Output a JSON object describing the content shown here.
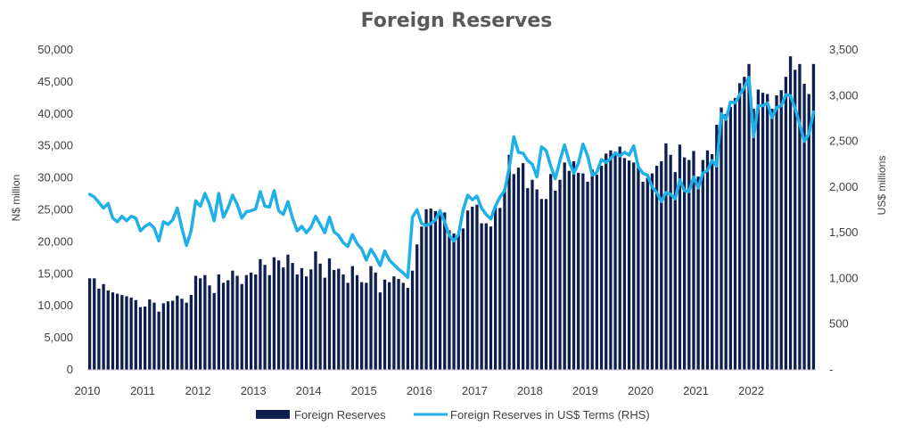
{
  "chart_data": {
    "type": "bar",
    "title": "Foreign Reserves",
    "ylabel": "N$ million",
    "y2label": "US$ millions",
    "ylim": [
      0,
      50000
    ],
    "y2lim": [
      0,
      3500
    ],
    "yticks": [
      "0",
      "5,000",
      "10,000",
      "15,000",
      "20,000",
      "25,000",
      "30,000",
      "35,000",
      "40,000",
      "45,000",
      "50,000"
    ],
    "y2ticks": [
      "-",
      "500",
      "1,000",
      "1,500",
      "2,000",
      "2,500",
      "3,000",
      "3,500"
    ],
    "xticks": [
      "2010",
      "2011",
      "2012",
      "2013",
      "2014",
      "2015",
      "2016",
      "2017",
      "2018",
      "2019",
      "2020",
      "2021",
      "2022"
    ],
    "x_start": "2010-01",
    "legend_position": "bottom",
    "series": [
      {
        "name": "Foreign Reserves",
        "type": "bar",
        "axis": "left",
        "color": "#0e1e50",
        "values": [
          14300,
          14300,
          12700,
          13400,
          12400,
          12100,
          11900,
          11700,
          11500,
          11300,
          10900,
          9800,
          9900,
          11000,
          10500,
          9100,
          10400,
          10700,
          10800,
          11600,
          11100,
          10500,
          11700,
          14700,
          14300,
          14800,
          13200,
          12000,
          14900,
          13600,
          14000,
          15500,
          14700,
          13400,
          14800,
          15200,
          14900,
          17300,
          16400,
          14800,
          17600,
          17100,
          16000,
          18000,
          16700,
          14900,
          15900,
          14600,
          15700,
          18500,
          16600,
          14400,
          17400,
          15600,
          15800,
          14900,
          13600,
          16200,
          14800,
          13700,
          13600,
          16200,
          15200,
          12100,
          14100,
          13700,
          14600,
          14200,
          13600,
          12800,
          15500,
          19600,
          22400,
          25100,
          25200,
          24800,
          24800,
          24600,
          21800,
          21300,
          21100,
          22100,
          24900,
          25500,
          25800,
          22900,
          22900,
          22400,
          25400,
          25300,
          28200,
          33600,
          30600,
          31600,
          32300,
          28400,
          29700,
          28200,
          26700,
          26700,
          30600,
          28000,
          29700,
          32400,
          31100,
          32600,
          30800,
          30700,
          29400,
          31300,
          30500,
          31900,
          33800,
          34300,
          34100,
          34900,
          33100,
          32700,
          32400,
          31900,
          29400,
          30000,
          30700,
          31900,
          32600,
          35400,
          33600,
          30900,
          35200,
          33200,
          32800,
          34200,
          30200,
          32800,
          34300,
          33700,
          38300,
          41000,
          40000,
          41100,
          42500,
          44800,
          45800,
          47800,
          40800,
          43800,
          43300,
          43100,
          40800,
          42900,
          43700,
          45800,
          49000,
          46900,
          47800,
          44700,
          43100,
          47800
        ]
      },
      {
        "name": "Foreign Reserves in US$ Terms  (RHS)",
        "type": "line",
        "axis": "right",
        "color": "#1fb0e8",
        "values": [
          1920,
          1890,
          1830,
          1770,
          1820,
          1660,
          1620,
          1680,
          1630,
          1680,
          1660,
          1520,
          1570,
          1600,
          1550,
          1410,
          1620,
          1590,
          1640,
          1770,
          1550,
          1360,
          1520,
          1850,
          1790,
          1930,
          1810,
          1630,
          1930,
          1670,
          1770,
          1910,
          1810,
          1660,
          1730,
          1740,
          1760,
          1950,
          1790,
          1780,
          1960,
          1740,
          1700,
          1840,
          1660,
          1520,
          1570,
          1500,
          1560,
          1680,
          1590,
          1500,
          1670,
          1510,
          1470,
          1390,
          1350,
          1480,
          1380,
          1320,
          1200,
          1320,
          1240,
          1140,
          1300,
          1200,
          1150,
          1100,
          1060,
          1010,
          1670,
          1750,
          1600,
          1580,
          1600,
          1640,
          1740,
          1620,
          1470,
          1410,
          1480,
          1750,
          1910,
          1860,
          1900,
          1770,
          1700,
          1650,
          1790,
          1890,
          1960,
          2210,
          2550,
          2380,
          2370,
          2290,
          2250,
          2110,
          2440,
          2400,
          2230,
          2090,
          2290,
          2460,
          2280,
          2150,
          2260,
          2470,
          2340,
          2130,
          2160,
          2300,
          2270,
          2310,
          2370,
          2340,
          2380,
          2350,
          2450,
          2220,
          2150,
          2130,
          2000,
          1940,
          1840,
          1940,
          1920,
          1870,
          2080,
          1960,
          1950,
          2110,
          1990,
          2150,
          2180,
          2290,
          2230,
          2800,
          2740,
          2930,
          2920,
          3010,
          3090,
          3200,
          2550,
          2890,
          2890,
          2920,
          2760,
          2870,
          2890,
          3010,
          3000,
          2860,
          2690,
          2500,
          2580,
          2820
        ]
      }
    ]
  }
}
